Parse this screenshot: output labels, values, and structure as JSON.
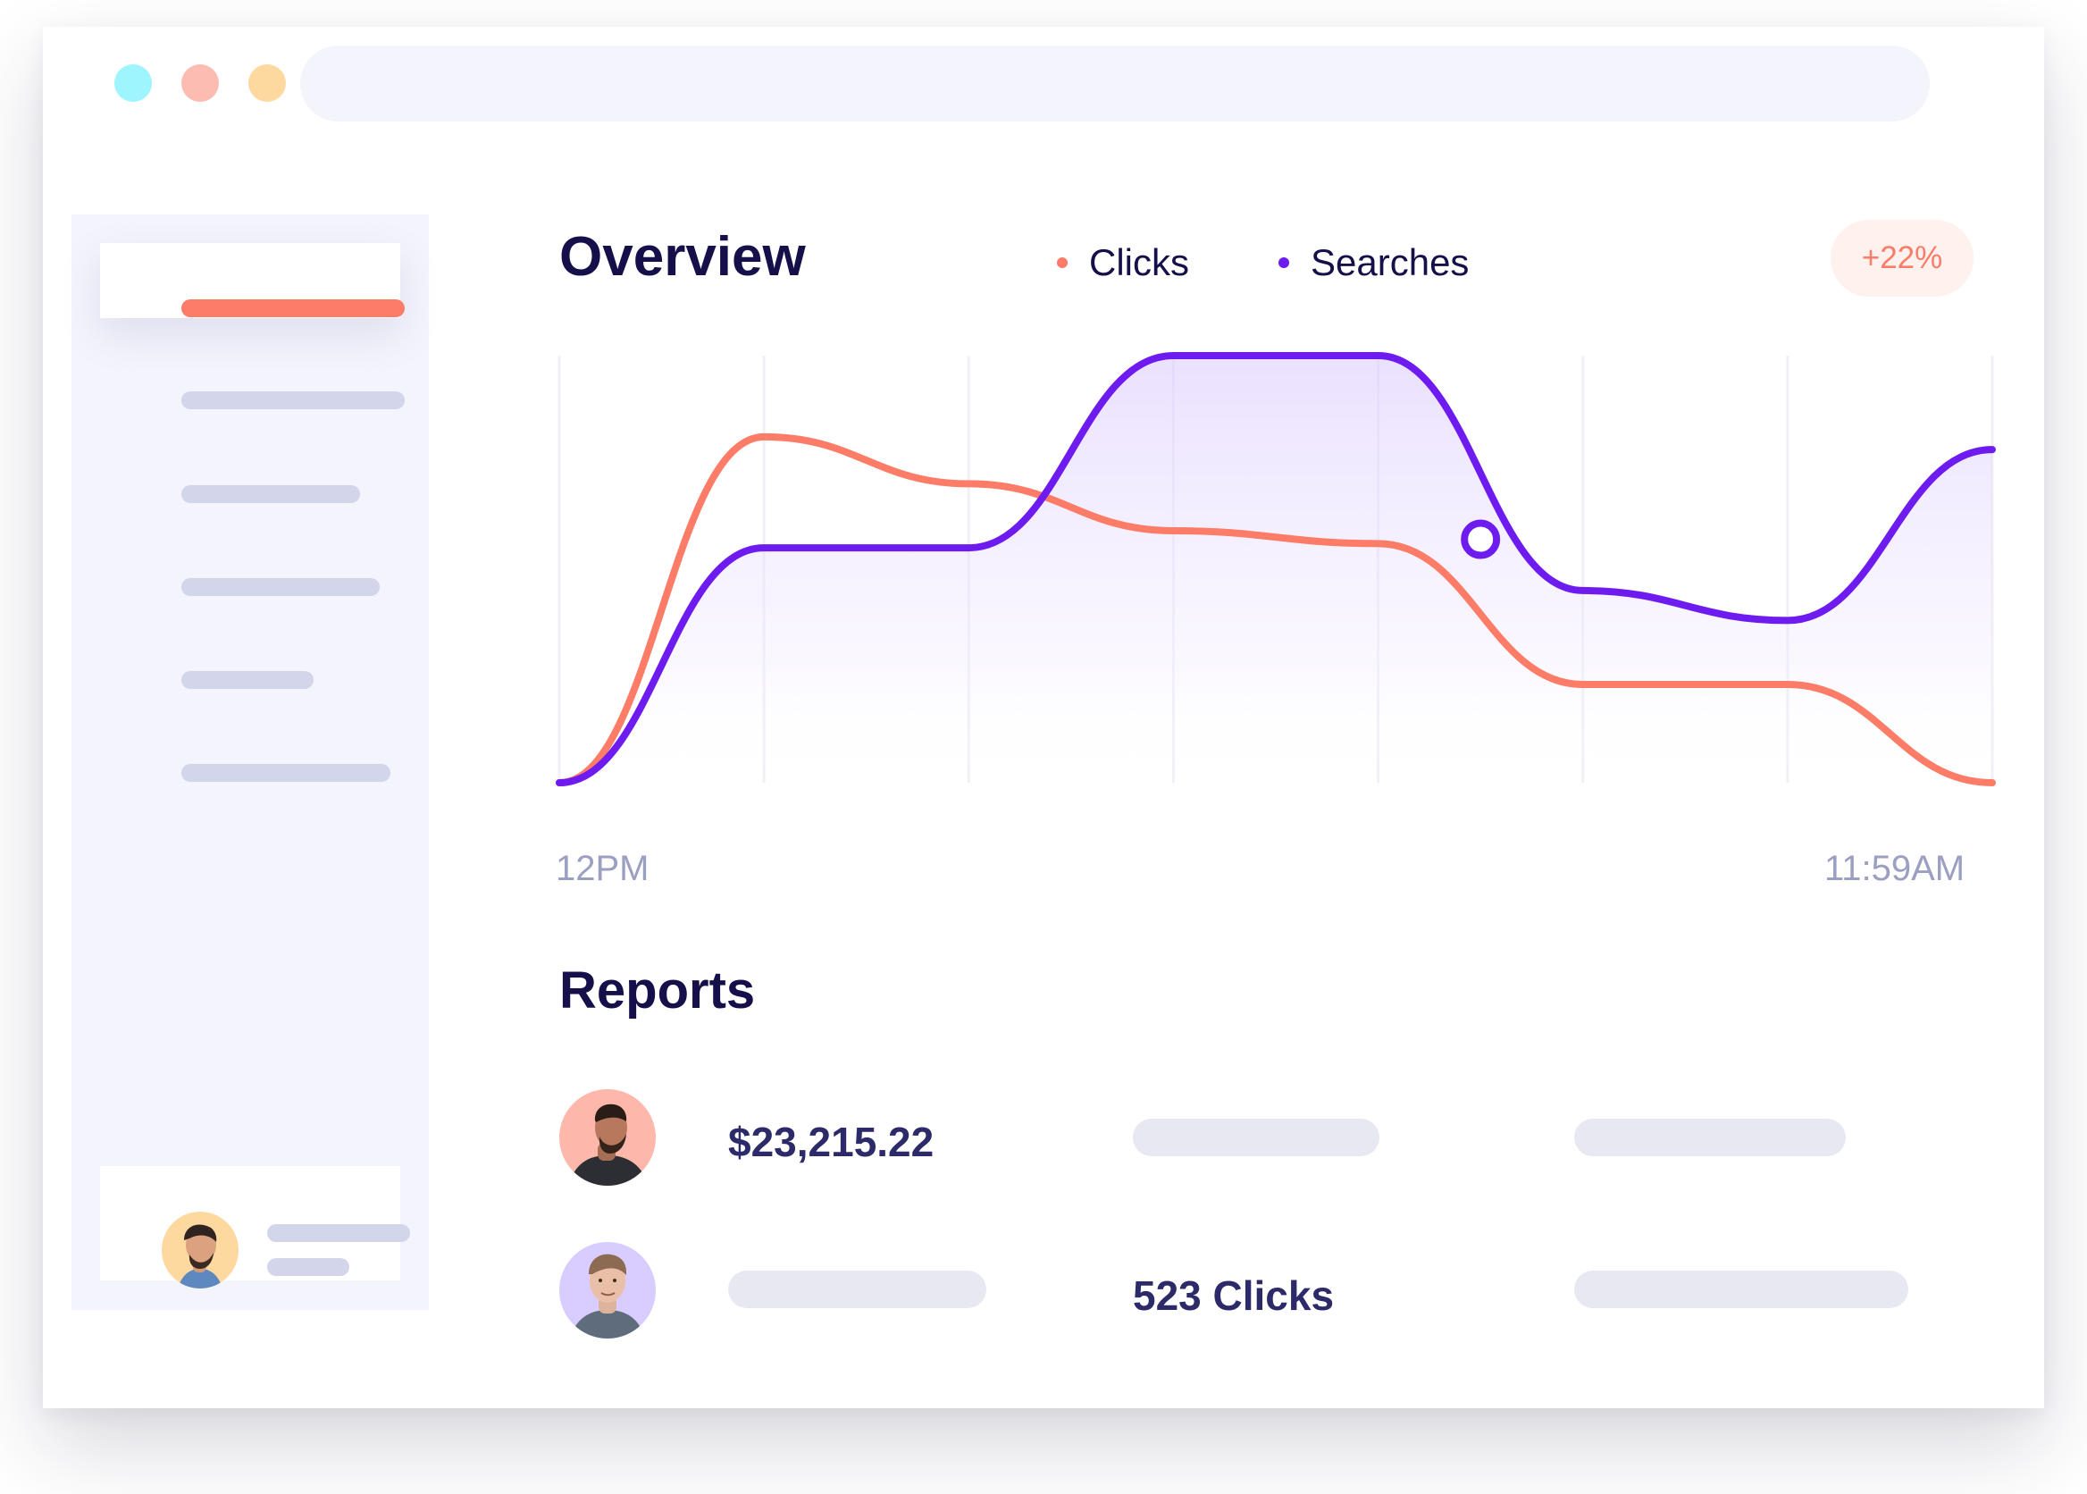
{
  "window": {
    "controls": [
      {
        "name": "cyan",
        "color": "#9ef5fd"
      },
      {
        "name": "pink",
        "color": "#fdbcb2"
      },
      {
        "name": "yellow",
        "color": "#fdd9a0"
      }
    ]
  },
  "overview": {
    "title": "Overview",
    "change_badge": "+22%"
  },
  "colors": {
    "clicks": "#fd7c68",
    "searches": "#6e1bef",
    "title": "#15104a",
    "axis_label": "#9b9fc1",
    "placeholder": "#e8e8f3"
  },
  "chart_data": {
    "type": "line",
    "x": [
      "12PM",
      "",
      "",
      "",
      "",
      "",
      "",
      "11:59AM"
    ],
    "x_labels_shown": [
      "12PM",
      "11:59AM"
    ],
    "series": [
      {
        "name": "Clicks",
        "values": [
          0,
          81,
          70,
          59,
          56,
          23,
          23,
          0
        ]
      },
      {
        "name": "Searches",
        "values": [
          0,
          55,
          55,
          100,
          100,
          45,
          38,
          78
        ]
      }
    ],
    "ylim": [
      0,
      100
    ],
    "grid": "vertical",
    "legend": "top",
    "highlight": {
      "series": "Searches",
      "x": 4.5,
      "y": 57
    }
  },
  "legend": {
    "clicks": "Clicks",
    "searches": "Searches"
  },
  "axis": {
    "start": "12PM",
    "end": "11:59AM"
  },
  "reports": {
    "title": "Reports",
    "rows": [
      {
        "value": "$23,215.22"
      },
      {
        "value": "523 Clicks"
      }
    ]
  }
}
